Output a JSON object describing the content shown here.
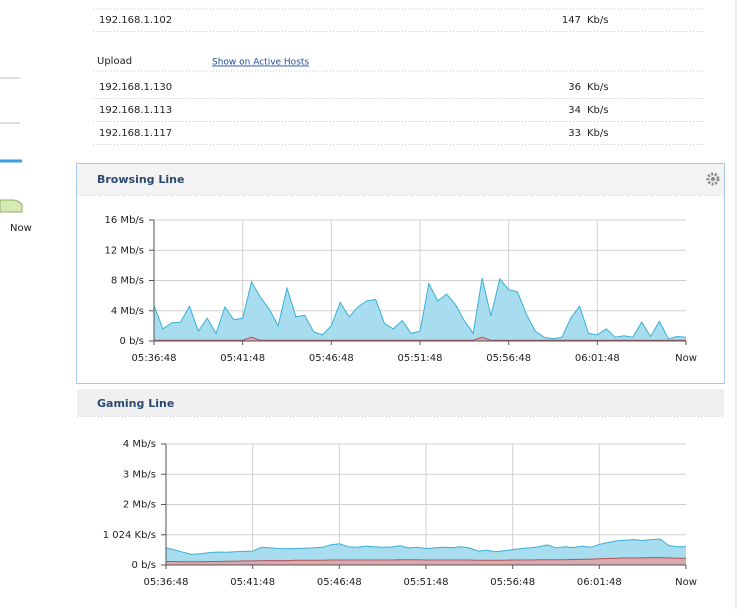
{
  "download_rows": [
    {
      "ip": "192.168.1.102",
      "value": 147,
      "unit": "Kb/s"
    }
  ],
  "upload": {
    "label": "Upload",
    "link": "Show on Active Hosts",
    "rows": [
      {
        "ip": "192.168.1.130",
        "value": 36,
        "unit": "Kb/s"
      },
      {
        "ip": "192.168.1.113",
        "value": 34,
        "unit": "Kb/s"
      },
      {
        "ip": "192.168.1.117",
        "value": 33,
        "unit": "Kb/s"
      }
    ]
  },
  "sidebar": {
    "x_label": "Now"
  },
  "chart_data": [
    {
      "type": "area",
      "title": "Browsing Line",
      "categories": [
        "05:36:48",
        null,
        null,
        null,
        null,
        null,
        null,
        null,
        null,
        null,
        "05:41:48",
        null,
        null,
        null,
        null,
        null,
        null,
        null,
        null,
        null,
        "05:46:48",
        null,
        null,
        null,
        null,
        null,
        null,
        null,
        null,
        null,
        "05:51:48",
        null,
        null,
        null,
        null,
        null,
        null,
        null,
        null,
        null,
        "05:56:48",
        null,
        null,
        null,
        null,
        null,
        null,
        null,
        null,
        null,
        "06:01:48",
        null,
        null,
        null,
        null,
        null,
        null,
        null,
        null,
        null,
        "Now"
      ],
      "series": [
        {
          "color": "#3ab0d6",
          "values": [
            4.7,
            1.6,
            2.4,
            2.5,
            4.6,
            1.3,
            3.0,
            1.0,
            4.5,
            2.8,
            3.0,
            7.8,
            5.8,
            4.2,
            2.0,
            7.0,
            3.2,
            3.4,
            1.2,
            0.8,
            2.0,
            5.1,
            3.2,
            4.5,
            5.3,
            5.5,
            2.3,
            1.6,
            2.7,
            1.0,
            1.3,
            7.6,
            5.3,
            6.2,
            4.8,
            2.7,
            1.0,
            8.3,
            3.3,
            8.2,
            6.8,
            6.5,
            3.5,
            1.3,
            0.5,
            0.3,
            0.5,
            3.0,
            4.6,
            1.0,
            0.8,
            1.6,
            0.5,
            0.7,
            0.5,
            2.5,
            0.6,
            2.6,
            0.3,
            0.6,
            0.5
          ]
        },
        {
          "color": "#b5545a",
          "values": [
            0.1,
            0.1,
            0.1,
            0.1,
            0.1,
            0.1,
            0.1,
            0.1,
            0.1,
            0.1,
            0.1,
            0.5,
            0.1,
            0.1,
            0.1,
            0.1,
            0.1,
            0.1,
            0.1,
            0.1,
            0.1,
            0.1,
            0.1,
            0.1,
            0.1,
            0.1,
            0.1,
            0.1,
            0.1,
            0.1,
            0.1,
            0.1,
            0.1,
            0.1,
            0.1,
            0.1,
            0.1,
            0.5,
            0.1,
            0.1,
            0.1,
            0.1,
            0.1,
            0.1,
            0.1,
            0.1,
            0.1,
            0.1,
            0.1,
            0.1,
            0.1,
            0.1,
            0.1,
            0.1,
            0.1,
            0.1,
            0.1,
            0.1,
            0.1,
            0.1,
            0.1
          ]
        }
      ],
      "ylim": [
        0,
        16
      ],
      "yticks": [
        {
          "value": 0,
          "label": "0 b/s"
        },
        {
          "value": 4,
          "label": "4 Mb/s"
        },
        {
          "value": 8,
          "label": "8 Mb/s"
        },
        {
          "value": 12,
          "label": "12 Mb/s"
        },
        {
          "value": 16,
          "label": "16 Mb/s"
        }
      ],
      "grid": true
    },
    {
      "type": "area",
      "title": "Gaming Line",
      "categories": [
        "05:36:48",
        null,
        null,
        null,
        null,
        null,
        null,
        null,
        null,
        null,
        "05:41:48",
        null,
        null,
        null,
        null,
        null,
        null,
        null,
        null,
        null,
        "05:46:48",
        null,
        null,
        null,
        null,
        null,
        null,
        null,
        null,
        null,
        "05:51:48",
        null,
        null,
        null,
        null,
        null,
        null,
        null,
        null,
        null,
        "05:56:48",
        null,
        null,
        null,
        null,
        null,
        null,
        null,
        null,
        null,
        "06:01:48",
        null,
        null,
        null,
        null,
        null,
        null,
        null,
        null,
        null,
        "Now"
      ],
      "series": [
        {
          "color": "#3ab0d6",
          "values": [
            580,
            510,
            430,
            360,
            380,
            420,
            440,
            430,
            450,
            460,
            470,
            600,
            580,
            560,
            550,
            560,
            570,
            580,
            600,
            680,
            720,
            620,
            600,
            640,
            620,
            600,
            610,
            650,
            580,
            600,
            560,
            580,
            600,
            590,
            620,
            580,
            470,
            500,
            450,
            480,
            520,
            560,
            580,
            620,
            680,
            580,
            620,
            590,
            640,
            600,
            700,
            760,
            820,
            840,
            860,
            830,
            860,
            880,
            660,
            620,
            620
          ]
        },
        {
          "color": "#b5545a",
          "values": [
            120,
            120,
            110,
            110,
            110,
            120,
            120,
            130,
            130,
            140,
            140,
            150,
            150,
            150,
            150,
            160,
            160,
            160,
            160,
            170,
            170,
            170,
            170,
            170,
            170,
            170,
            170,
            180,
            180,
            180,
            170,
            170,
            170,
            170,
            170,
            170,
            160,
            160,
            160,
            160,
            170,
            170,
            170,
            180,
            180,
            180,
            180,
            190,
            190,
            200,
            210,
            220,
            230,
            240,
            240,
            240,
            250,
            250,
            240,
            230,
            230
          ]
        }
      ],
      "ylim": [
        0,
        4096
      ],
      "yticks": [
        {
          "value": 0,
          "label": "0 b/s"
        },
        {
          "value": 1024,
          "label": "1 024 Kb/s"
        },
        {
          "value": 2048,
          "label": "2 Mb/s"
        },
        {
          "value": 3072,
          "label": "3 Mb/s"
        },
        {
          "value": 4096,
          "label": "4 Mb/s"
        }
      ],
      "grid": true
    }
  ]
}
